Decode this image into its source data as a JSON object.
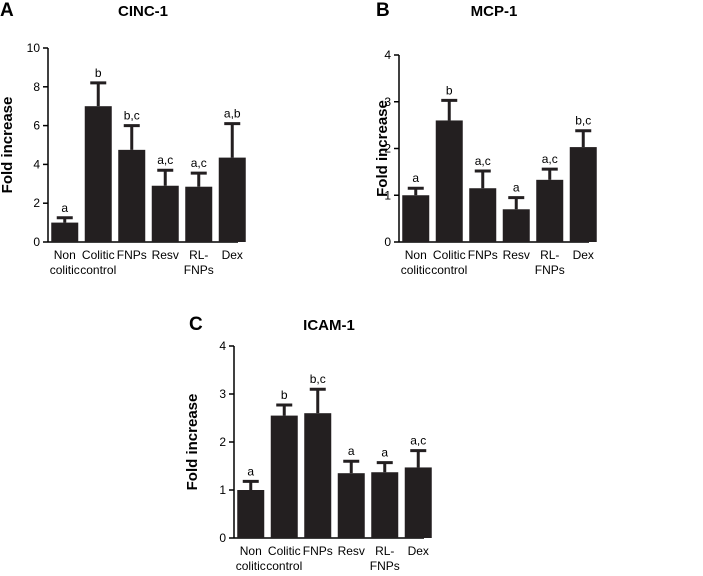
{
  "colors": {
    "bar": "#231f20",
    "axis": "#000000"
  },
  "chart_data": [
    {
      "type": "bar",
      "panel": "A",
      "title": "CINC-1",
      "ylabel": "Fold increase",
      "ylim": [
        0,
        10
      ],
      "yticks": [
        "0",
        "2",
        "4",
        "6",
        "8",
        "10"
      ],
      "categories": [
        [
          "Non",
          "colitic"
        ],
        [
          "Colitic",
          "control"
        ],
        [
          "FNPs"
        ],
        [
          "Resv"
        ],
        [
          "RL-",
          "FNPs"
        ],
        [
          "Dex"
        ]
      ],
      "values": [
        1.0,
        7.0,
        4.75,
        2.9,
        2.85,
        4.35
      ],
      "errors": [
        0.25,
        1.2,
        1.25,
        0.8,
        0.7,
        1.75
      ],
      "annotations": [
        "a",
        "b",
        "b,c",
        "a,c",
        "a,c",
        "a,b"
      ]
    },
    {
      "type": "bar",
      "panel": "B",
      "title": "MCP-1",
      "ylabel": "Fold increase",
      "ylim": [
        0,
        4
      ],
      "yticks": [
        "0",
        "1",
        "2",
        "3",
        "4"
      ],
      "categories": [
        [
          "Non",
          "colitic"
        ],
        [
          "Colitic",
          "control"
        ],
        [
          "FNPs"
        ],
        [
          "Resv"
        ],
        [
          "RL-",
          "FNPs"
        ],
        [
          "Dex"
        ]
      ],
      "values": [
        1.0,
        2.6,
        1.15,
        0.7,
        1.33,
        2.03
      ],
      "errors": [
        0.15,
        0.43,
        0.37,
        0.25,
        0.23,
        0.35
      ],
      "annotations": [
        "a",
        "b",
        "a,c",
        "a",
        "a,c",
        "b,c"
      ]
    },
    {
      "type": "bar",
      "panel": "C",
      "title": "ICAM-1",
      "ylabel": "Fold increase",
      "ylim": [
        0,
        4
      ],
      "yticks": [
        "0",
        "1",
        "2",
        "3",
        "4"
      ],
      "categories": [
        [
          "Non",
          "colitic"
        ],
        [
          "Colitic",
          "control"
        ],
        [
          "FNPs"
        ],
        [
          "Resv"
        ],
        [
          "RL-",
          "FNPs"
        ],
        [
          "Dex"
        ]
      ],
      "values": [
        1.0,
        2.55,
        2.6,
        1.35,
        1.37,
        1.47
      ],
      "errors": [
        0.18,
        0.22,
        0.5,
        0.25,
        0.2,
        0.35
      ],
      "annotations": [
        "a",
        "b",
        "b,c",
        "a",
        "a",
        "a,c"
      ]
    }
  ]
}
